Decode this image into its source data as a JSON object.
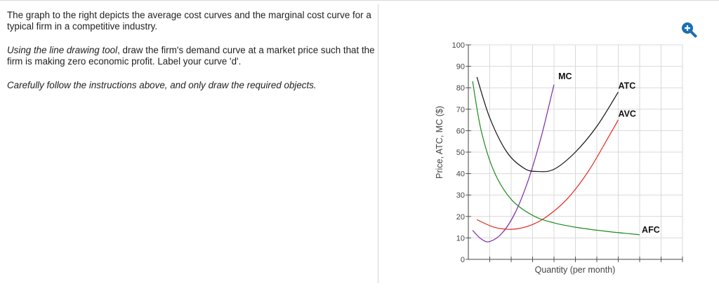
{
  "instructions": {
    "p1": "The graph to the right depicts the average cost curves and the marginal cost curve for a typical firm in a competitive industry.",
    "p2_italic": "Using the line drawing tool",
    "p2_rest": ", draw the firm's demand curve at a market price such that the firm is making zero economic profit. Label your curve 'd'.",
    "p3": "Carefully follow the instructions above, and only draw the required objects."
  },
  "zoom_icon": "zoom-in-icon",
  "colors": {
    "mc": "#7b2aa5",
    "atc": "#111111",
    "avc": "#e0281e",
    "afc": "#1f8a1f",
    "zoom": "#1a6fb3"
  },
  "chart_data": {
    "type": "line",
    "xlabel": "Quantity (per month)",
    "ylabel": "Price, ATC, MC ($)",
    "ylim": [
      0,
      100
    ],
    "yticks": [
      0,
      10,
      20,
      30,
      40,
      50,
      60,
      70,
      80,
      90,
      100
    ],
    "xlim": [
      0,
      10
    ],
    "grid": true,
    "series": [
      {
        "name": "MC",
        "x": [
          0.2,
          0.6,
          1.0,
          1.6,
          2.2,
          2.8,
          3.4,
          4.0
        ],
        "y": [
          13.5,
          9.5,
          8.3,
          12.5,
          22,
          37,
          57,
          81.5
        ]
      },
      {
        "name": "ATC",
        "x": [
          0.4,
          1.0,
          1.8,
          2.6,
          3.2,
          4.0,
          5.0,
          6.0,
          7.0
        ],
        "y": [
          85,
          66,
          50,
          42.5,
          41,
          42,
          50,
          62,
          78
        ]
      },
      {
        "name": "AVC",
        "x": [
          0.4,
          1.2,
          2.0,
          2.8,
          3.6,
          4.6,
          5.6,
          6.6,
          7.0
        ],
        "y": [
          18.5,
          15,
          14,
          15.5,
          19.5,
          28,
          41,
          58,
          65
        ]
      },
      {
        "name": "AFC",
        "x": [
          0.2,
          0.6,
          1.2,
          2.0,
          3.0,
          4.0,
          5.0,
          6.5,
          8.0
        ],
        "y": [
          83,
          60,
          41,
          28,
          20.5,
          17,
          15,
          13,
          11.5
        ]
      }
    ],
    "labels": [
      {
        "text": "MC",
        "x": 4.2,
        "y": 84
      },
      {
        "text": "ATC",
        "x": 7.0,
        "y": 79.5
      },
      {
        "text": "AVC",
        "x": 7.0,
        "y": 66.5
      },
      {
        "text": "AFC",
        "x": 8.1,
        "y": 12.5
      }
    ]
  }
}
